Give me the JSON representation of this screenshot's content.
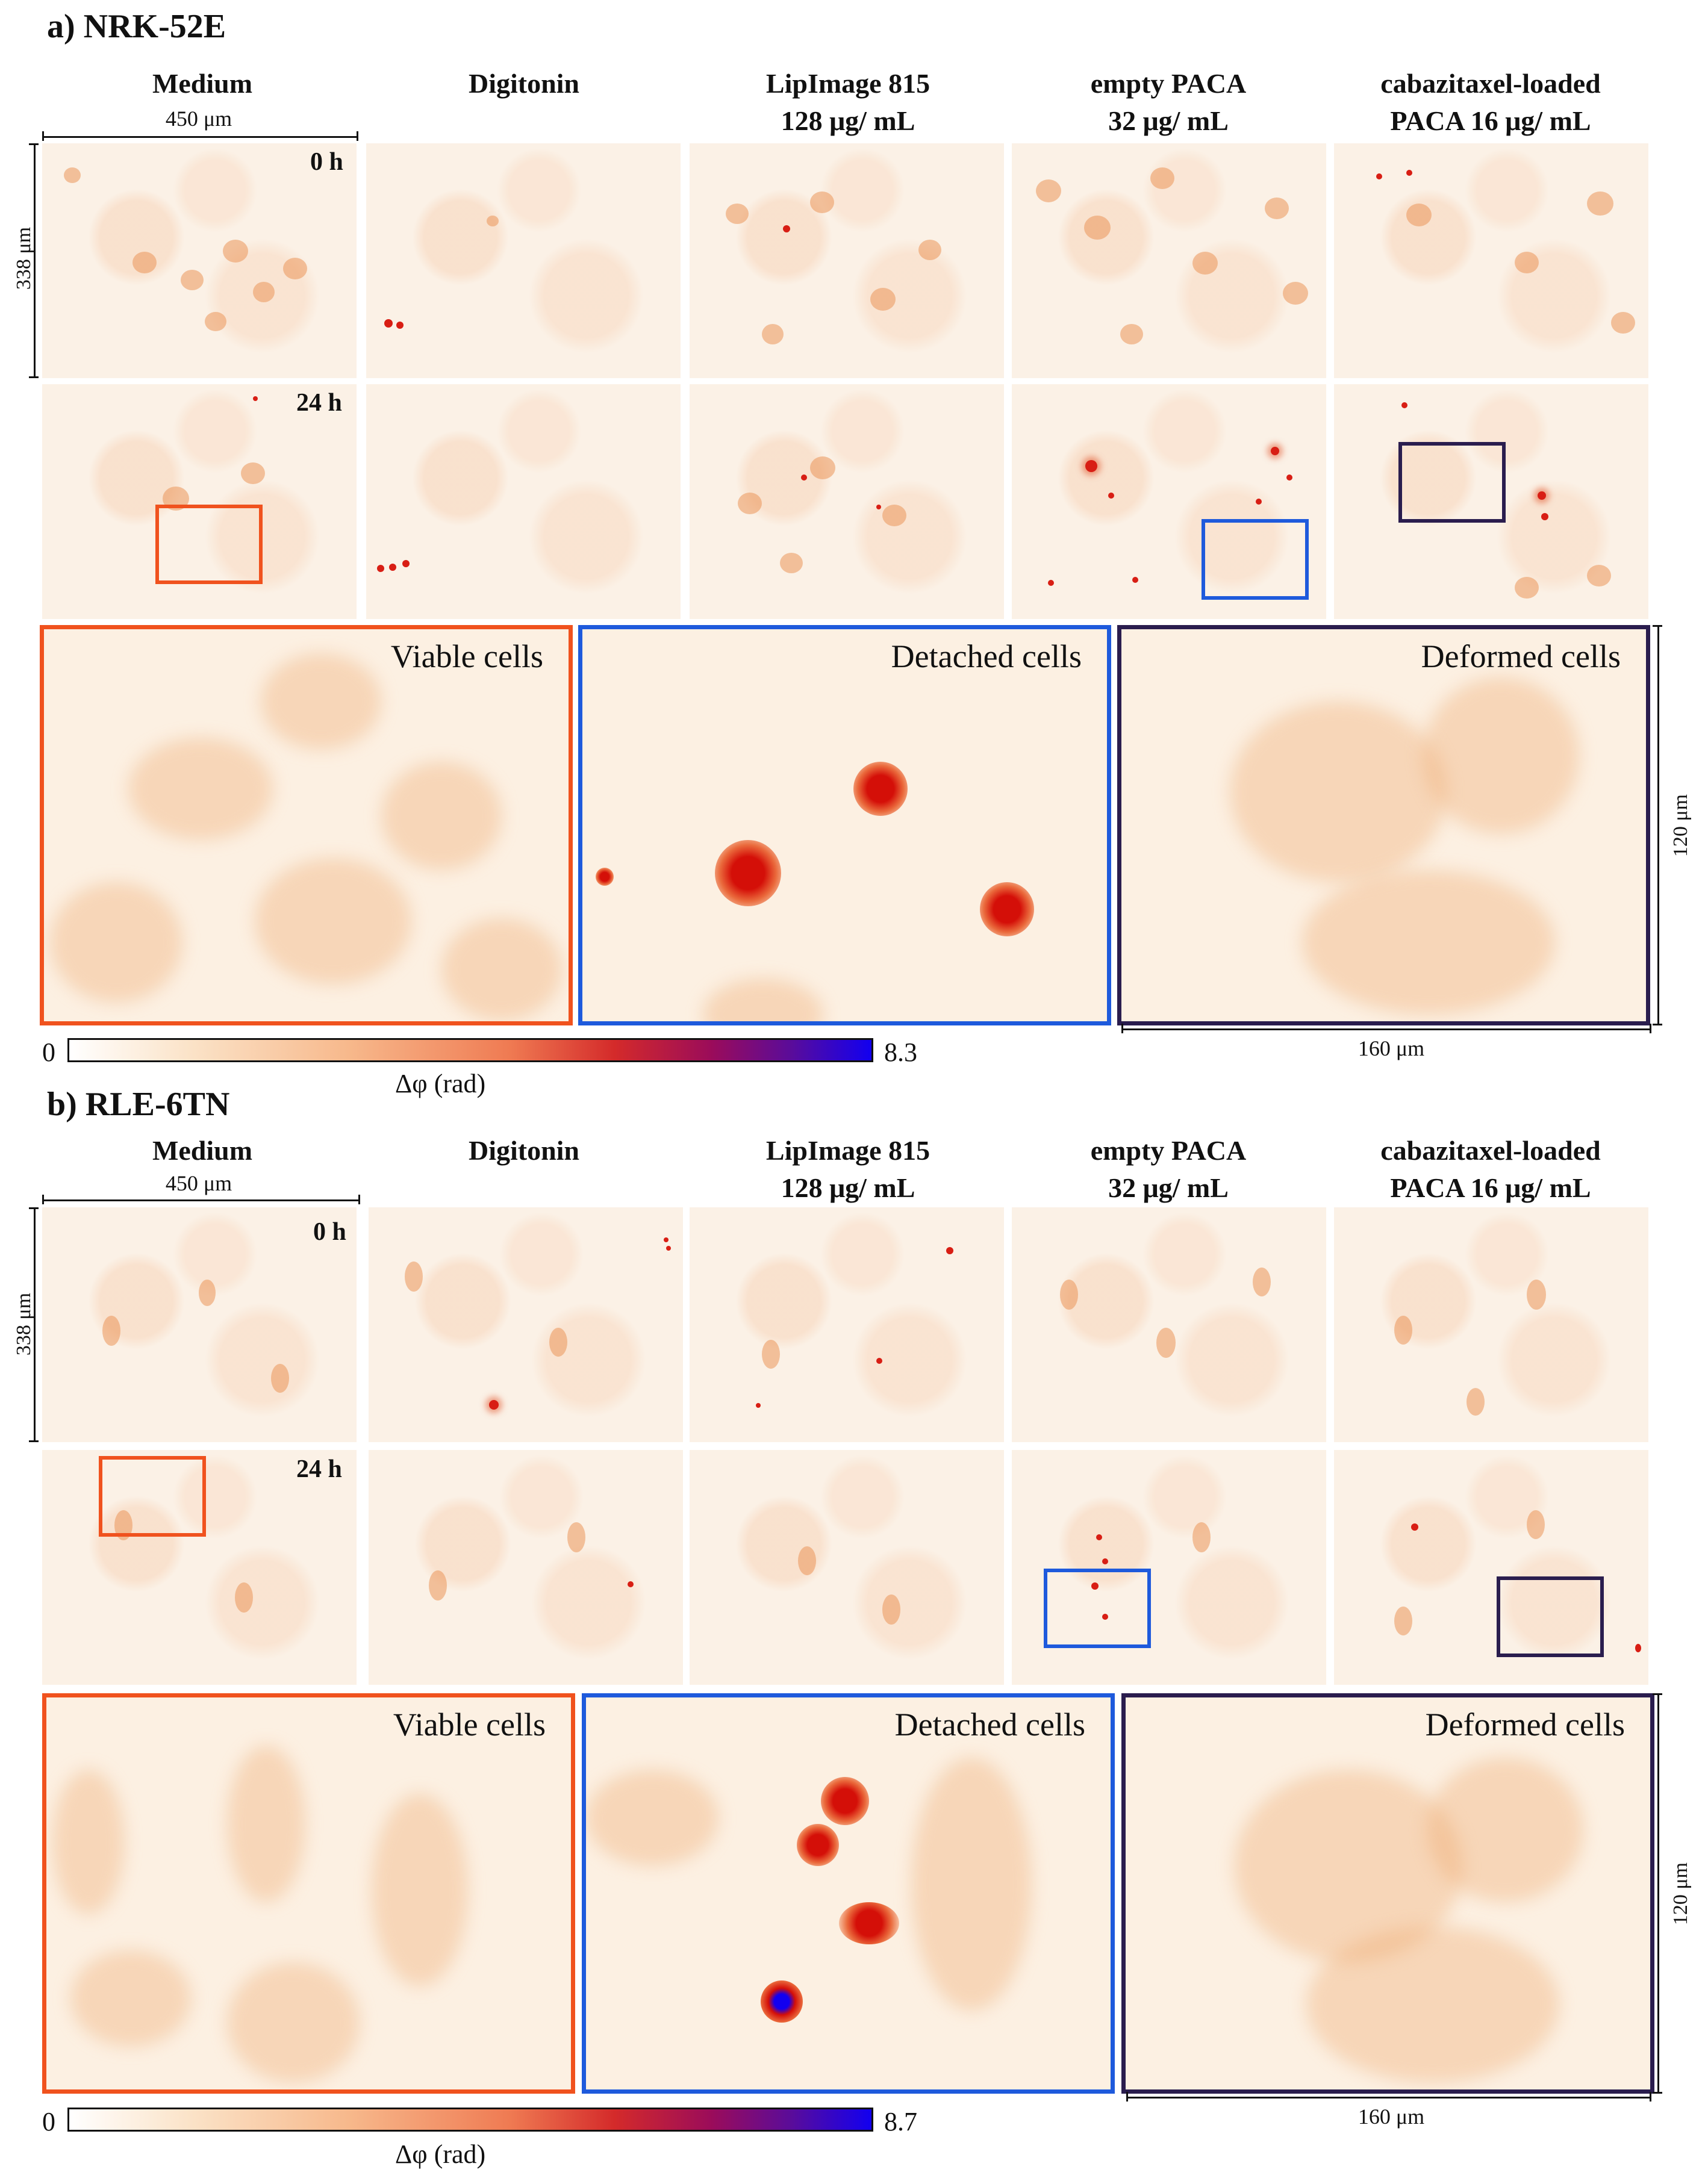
{
  "panels": [
    {
      "title": "a) NRK-52E",
      "columns": [
        "Medium",
        "Digitonin",
        "LipImage 815\n128 μg/ mL",
        "empty PACA\n32 μg/ mL",
        "cabazitaxel-loaded\nPACA 16 μg/ mL"
      ],
      "width_scale": "450 μm",
      "height_scale": "338 μm",
      "time_labels": [
        "0 h",
        "24 h"
      ],
      "zoom_labels": [
        "Viable cells",
        "Detached cells",
        "Deformed cells"
      ],
      "zoom_height_scale": "120 μm",
      "zoom_width_scale": "160 μm",
      "colorbar": {
        "min": "0",
        "max": "8.3",
        "label": "Δφ (rad)"
      }
    },
    {
      "title": "b) RLE-6TN",
      "columns": [
        "Medium",
        "Digitonin",
        "LipImage 815\n128 μg/ mL",
        "empty PACA\n32 μg/ mL",
        "cabazitaxel-loaded\nPACA 16 μg/ mL"
      ],
      "width_scale": "450 μm",
      "height_scale": "338 μm",
      "time_labels": [
        "0 h",
        "24 h"
      ],
      "zoom_labels": [
        "Viable cells",
        "Detached cells",
        "Deformed cells"
      ],
      "zoom_height_scale": "120 μm",
      "zoom_width_scale": "160 μm",
      "colorbar": {
        "min": "0",
        "max": "8.7",
        "label": "Δφ (rad)"
      }
    }
  ],
  "colors": {
    "viable": "#f0521e",
    "detached": "#1e5adc",
    "deformed": "#2a1d4e"
  }
}
